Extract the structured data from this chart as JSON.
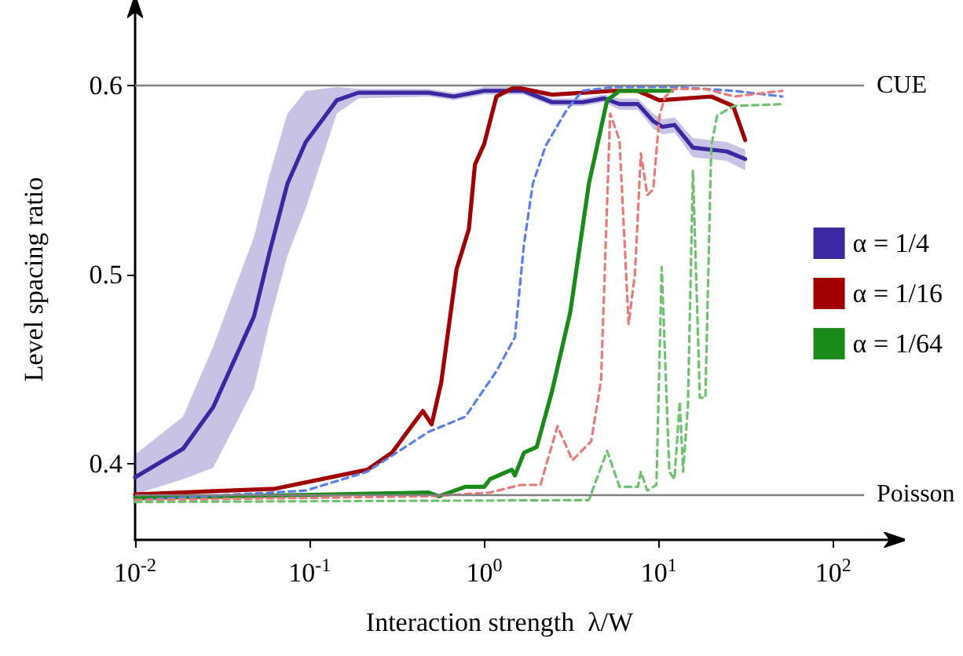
{
  "chart_data": {
    "type": "line",
    "xlabel": "Interaction strength  λ/W",
    "ylabel": "Level spacing ratio",
    "log": "x",
    "xlim": [
      0.01,
      150
    ],
    "xticks": [
      {
        "value": 0.01,
        "label": "10$^{-2}$"
      },
      {
        "value": 0.1,
        "label": "10$^{-1}$"
      },
      {
        "value": 1,
        "label": "10$^{0}$"
      },
      {
        "value": 10,
        "label": "10$^{1}$"
      },
      {
        "value": 100,
        "label": "10$^{2}$"
      }
    ],
    "ylim": [
      0.36,
      0.635
    ],
    "yticks": [
      0.4,
      0.5,
      0.6
    ],
    "grid": false,
    "legend": "right",
    "marker": "none",
    "line_style": "solid",
    "ref_lines": [
      {
        "axis": "y",
        "value": 0.6,
        "label": "CUE",
        "color": "#808080"
      },
      {
        "axis": "y",
        "value": 0.384,
        "label": "Poisson",
        "color": "#808080"
      }
    ],
    "series": [
      {
        "name": "α = 1/4",
        "color": "#3b28a0",
        "x": [
          0.01,
          0.0188,
          0.028,
          0.048,
          0.059,
          0.0746,
          0.095,
          0.143,
          0.19,
          0.48,
          0.67,
          1.0,
          1.68,
          2.44,
          3.66,
          4.86,
          5.96,
          7.6,
          9.3,
          10.5,
          12.3,
          15.7,
          24.5,
          31.3
        ],
        "values": [
          0.393,
          0.408,
          0.43,
          0.478,
          0.512,
          0.548,
          0.57,
          0.592,
          0.596,
          0.596,
          0.594,
          0.597,
          0.597,
          0.591,
          0.591,
          0.593,
          0.59,
          0.59,
          0.581,
          0.578,
          0.579,
          0.567,
          0.565,
          0.561
        ],
        "lower": [
          0.384,
          0.392,
          0.398,
          0.44,
          0.475,
          0.51,
          0.535,
          0.585,
          0.593,
          0.594,
          0.592,
          0.595,
          0.595,
          0.589,
          0.589,
          0.591,
          0.587,
          0.587,
          0.577,
          0.574,
          0.575,
          0.562,
          0.56,
          0.555
        ],
        "upper": [
          0.405,
          0.425,
          0.462,
          0.52,
          0.553,
          0.585,
          0.597,
          0.599,
          0.598,
          0.598,
          0.596,
          0.599,
          0.599,
          0.593,
          0.593,
          0.595,
          0.593,
          0.593,
          0.585,
          0.582,
          0.583,
          0.572,
          0.57,
          0.566
        ]
      },
      {
        "name": "α = 1/16",
        "color": "#a00000",
        "x": [
          0.01,
          0.0635,
          0.214,
          0.296,
          0.445,
          0.5,
          0.567,
          0.695,
          0.817,
          0.885,
          1.0,
          1.175,
          1.5,
          2.44,
          5.5,
          7.6,
          10.1,
          20,
          26.7,
          31.3
        ],
        "values": [
          0.384,
          0.387,
          0.397,
          0.406,
          0.428,
          0.421,
          0.443,
          0.503,
          0.524,
          0.558,
          0.569,
          0.594,
          0.599,
          0.595,
          0.597,
          0.597,
          0.592,
          0.594,
          0.589,
          0.571
        ]
      },
      {
        "name": "α = 1/64",
        "color": "#1a8a1a",
        "x": [
          0.01,
          0.48,
          0.55,
          0.78,
          1.0,
          1.08,
          1.28,
          1.44,
          1.5,
          1.69,
          2.0,
          2.44,
          3.11,
          3.98,
          5.06,
          5.96,
          9.7,
          11.9
        ],
        "values": [
          0.382,
          0.385,
          0.383,
          0.388,
          0.388,
          0.392,
          0.395,
          0.397,
          0.394,
          0.406,
          0.409,
          0.438,
          0.48,
          0.548,
          0.592,
          0.597,
          0.597,
          0.597
        ]
      },
      {
        "color": "#5b7fe8",
        "line_style": "dashed",
        "x": [
          0.01,
          0.095,
          0.214,
          0.48,
          0.78,
          1.175,
          1.5,
          1.69,
          1.9,
          2.25,
          2.97,
          3.66,
          5.5,
          12.3,
          27,
          51
        ],
        "values": [
          0.381,
          0.386,
          0.396,
          0.417,
          0.425,
          0.449,
          0.467,
          0.516,
          0.548,
          0.568,
          0.587,
          0.597,
          0.599,
          0.599,
          0.597,
          0.594
        ]
      },
      {
        "color": "#e87a7a",
        "line_style": "dashed",
        "x": [
          0.01,
          0.48,
          1.08,
          1.62,
          2.1,
          2.63,
          3.2,
          4.1,
          4.67,
          5.27,
          5.96,
          6.72,
          7.3,
          7.9,
          8.6,
          9.3,
          10.1,
          10.9,
          12.3,
          18.5,
          27,
          51
        ],
        "values": [
          0.381,
          0.383,
          0.385,
          0.389,
          0.389,
          0.42,
          0.402,
          0.412,
          0.444,
          0.585,
          0.571,
          0.474,
          0.5,
          0.564,
          0.542,
          0.545,
          0.584,
          0.594,
          0.598,
          0.598,
          0.594,
          0.597
        ]
      },
      {
        "color": "#6fc06f",
        "line_style": "dashed",
        "x": [
          0.01,
          3.98,
          5.06,
          5.96,
          7.6,
          7.9,
          8.6,
          9.7,
          10.4,
          11.5,
          12.3,
          13.2,
          13.8,
          14.7,
          15.7,
          17.2,
          18.5,
          20,
          21.6,
          27,
          51
        ],
        "values": [
          0.38,
          0.381,
          0.407,
          0.388,
          0.388,
          0.396,
          0.386,
          0.389,
          0.504,
          0.396,
          0.392,
          0.433,
          0.396,
          0.431,
          0.555,
          0.435,
          0.435,
          0.568,
          0.584,
          0.589,
          0.59
        ]
      }
    ]
  }
}
